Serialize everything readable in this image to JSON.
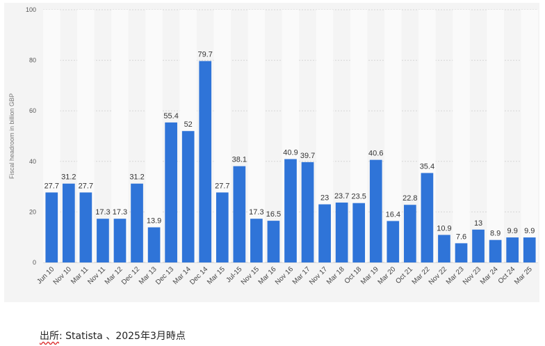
{
  "chart_data": {
    "type": "bar",
    "ylabel": "Fiscal headroom in billion GBP",
    "ylim": [
      0,
      100
    ],
    "yticks": [
      0,
      20,
      40,
      60,
      80,
      100
    ],
    "categories": [
      "Jun 10",
      "Nov 10",
      "Mar 11",
      "Nov 11",
      "Mar 12",
      "Dec 12",
      "Mar 13",
      "Dec 13",
      "Mar 14",
      "Dec 14",
      "Mar 15",
      "Jul-15",
      "Nov 15",
      "Mar 16",
      "Nov 16",
      "Mar 17",
      "Nov 17",
      "Mar 18",
      "Oct 18",
      "Mar 19",
      "Mar 20",
      "Oct 21",
      "Mar 22",
      "Nov 22",
      "Mar 23",
      "Nov 23",
      "Mar 24",
      "Oct 24",
      "Mar 25"
    ],
    "values": [
      27.7,
      31.2,
      27.7,
      17.3,
      17.3,
      31.2,
      13.9,
      55.4,
      52,
      79.7,
      27.7,
      38.1,
      17.3,
      16.5,
      40.9,
      39.7,
      23,
      23.7,
      23.5,
      40.6,
      16.4,
      22.8,
      35.4,
      10.9,
      7.6,
      13,
      8.9,
      9.9,
      9.9
    ],
    "value_labels": [
      "27.7",
      "31.2",
      "27.7",
      "17.3",
      "17.3",
      "31.2",
      "13.9",
      "55.4",
      "52",
      "79.7",
      "27.7",
      "38.1",
      "17.3",
      "16.5",
      "40.9",
      "39.7",
      "23",
      "23.7",
      "23.5",
      "40.6",
      "16.4",
      "22.8",
      "35.4",
      "10.9",
      "7.6",
      "13",
      "8.9",
      "9.9",
      "9.9"
    ],
    "grid": true,
    "bar_color": "#2f74d8"
  },
  "source": {
    "prefix": "出所",
    "text": ": Statista 、2025年3月時点"
  }
}
